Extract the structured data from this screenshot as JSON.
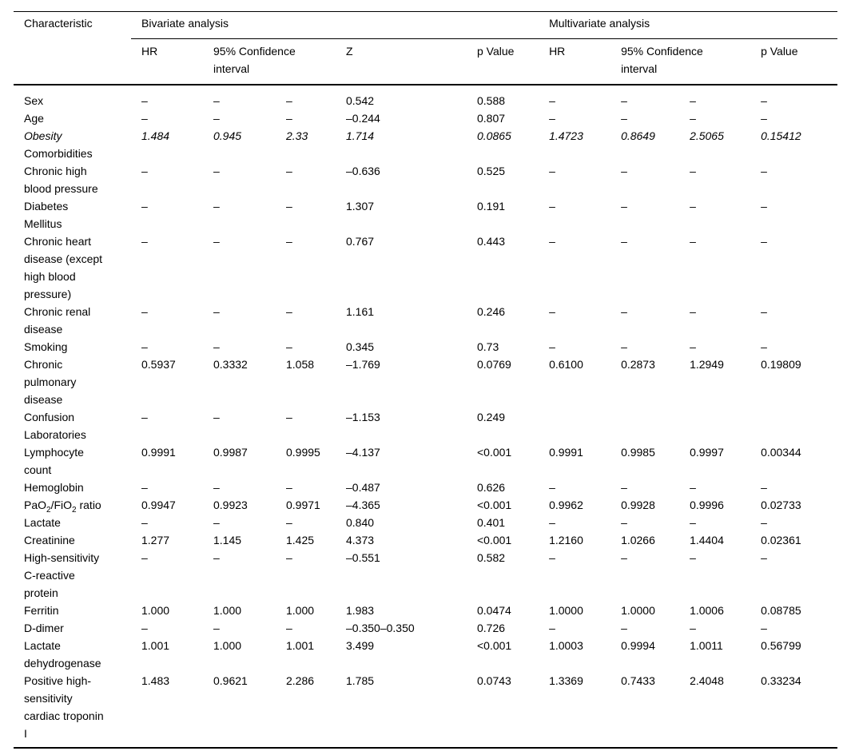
{
  "table": {
    "header": {
      "characteristic": "Characteristic",
      "bivariate": "Bivariate analysis",
      "multivariate": "Multivariate analysis",
      "sub": {
        "biv_hr": "HR",
        "biv_ci": "95% Confidence interval",
        "biv_z": "Z",
        "biv_p": "p Value",
        "multi_hr": "HR",
        "multi_ci": "95% Confidence interval",
        "multi_p": "p Value"
      }
    },
    "rows": [
      {
        "label": "Sex",
        "style": "normal",
        "italic": false,
        "cells": [
          "–",
          "–",
          "–",
          "0.542",
          "0.588",
          "–",
          "–",
          "–",
          "–"
        ]
      },
      {
        "label": "Age",
        "style": "normal",
        "italic": false,
        "cells": [
          "–",
          "–",
          "–",
          "–0.244",
          "0.807",
          "–",
          "–",
          "–",
          "–"
        ]
      },
      {
        "label": "Obesity",
        "style": "bold-italic",
        "italic": true,
        "cells": [
          "1.484",
          "0.945",
          "2.33",
          "1.714",
          "0.0865",
          "1.4723",
          "0.8649",
          "2.5065",
          "0.15412"
        ]
      },
      {
        "label": "Comorbidities",
        "style": "section",
        "italic": false,
        "cells": [
          "",
          "",
          "",
          "",
          "",
          "",
          "",
          "",
          ""
        ]
      },
      {
        "label": "Chronic high blood pressure",
        "style": "normal",
        "italic": false,
        "cells": [
          "–",
          "–",
          "–",
          "–0.636",
          "0.525",
          "–",
          "–",
          "–",
          "–"
        ]
      },
      {
        "label": "Diabetes Mellitus",
        "style": "normal",
        "italic": false,
        "cells": [
          "–",
          "–",
          "–",
          "1.307",
          "0.191",
          "–",
          "–",
          "–",
          "–"
        ]
      },
      {
        "label": "Chronic heart disease (except high blood pressure)",
        "style": "normal",
        "italic": false,
        "cells": [
          "–",
          "–",
          "–",
          "0.767",
          "0.443",
          "–",
          "–",
          "–",
          "–"
        ]
      },
      {
        "label": "Chronic renal disease",
        "style": "normal",
        "italic": false,
        "cells": [
          "–",
          "–",
          "–",
          "1.161",
          "0.246",
          "–",
          "–",
          "–",
          "–"
        ]
      },
      {
        "label": "Smoking",
        "style": "normal",
        "italic": false,
        "cells": [
          "–",
          "–",
          "–",
          "0.345",
          "0.73",
          "–",
          "–",
          "–",
          "–"
        ]
      },
      {
        "label": "Chronic pulmonary disease",
        "style": "bold",
        "italic": false,
        "cells": [
          "0.5937",
          "0.3332",
          "1.058",
          "–1.769",
          "0.0769",
          "0.6100",
          "0.2873",
          "1.2949",
          "0.19809"
        ]
      },
      {
        "label": "Confusion",
        "style": "normal",
        "italic": false,
        "cells": [
          "–",
          "–",
          "–",
          "–1.153",
          "0.249",
          "",
          "",
          "",
          ""
        ]
      },
      {
        "label": "Laboratories",
        "style": "section",
        "italic": false,
        "cells": [
          "",
          "",
          "",
          "",
          "",
          "",
          "",
          "",
          ""
        ]
      },
      {
        "label": "Lymphocyte count",
        "style": "normal",
        "italic": false,
        "cells": [
          "0.9991",
          "0.9987",
          "0.9995",
          "–4.137",
          "<0.001",
          "0.9991",
          "0.9985",
          "0.9997",
          "0.00344"
        ]
      },
      {
        "label": "Hemoglobin",
        "style": "normal",
        "italic": false,
        "cells": [
          "–",
          "–",
          "–",
          "–0.487",
          "0.626",
          "–",
          "–",
          "–",
          "–"
        ]
      },
      {
        "label": "PaO~2~/FiO~2~ ratio",
        "style": "normal",
        "italic": false,
        "cells": [
          "0.9947",
          "0.9923",
          "0.9971",
          "–4.365",
          "<0.001",
          "0.9962",
          "0.9928",
          "0.9996",
          "0.02733"
        ]
      },
      {
        "label": "Lactate",
        "style": "normal",
        "italic": false,
        "cells": [
          "–",
          "–",
          "–",
          "0.840",
          "0.401",
          "–",
          "–",
          "–",
          "–"
        ]
      },
      {
        "label": "Creatinine",
        "style": "normal",
        "italic": false,
        "cells": [
          "1.277",
          "1.145",
          "1.425",
          "4.373",
          "<0.001",
          "1.2160",
          "1.0266",
          "1.4404",
          "0.02361"
        ]
      },
      {
        "label": "High-sensitivity C-reactive protein",
        "style": "normal",
        "italic": false,
        "cells": [
          "–",
          "–",
          "–",
          "–0.551",
          "0.582",
          "–",
          "–",
          "–",
          "–"
        ]
      },
      {
        "label": "Ferritin",
        "style": "normal",
        "italic": false,
        "cells": [
          "1.000",
          "1.000",
          "1.000",
          "1.983",
          "0.0474",
          "1.0000",
          "1.0000",
          "1.0006",
          "0.08785"
        ]
      },
      {
        "label": "D-dimer",
        "style": "normal",
        "italic": false,
        "cells": [
          "–",
          "–",
          "–",
          "–0.350–0.350",
          "0.726",
          "–",
          "–",
          "–",
          "–"
        ]
      },
      {
        "label": "Lactate dehydrogenase",
        "style": "normal",
        "italic": false,
        "cells": [
          "1.001",
          "1.000",
          "1.001",
          "3.499",
          "<0.001",
          "1.0003",
          "0.9994",
          "1.0011",
          "0.56799"
        ]
      },
      {
        "label": "Positive high-sensitivity cardiac troponin I",
        "style": "normal",
        "italic": false,
        "cells": [
          "1.483",
          "0.9621",
          "2.286",
          "1.785",
          "0.0743",
          "1.3369",
          "0.7433",
          "2.4048",
          "0.33234"
        ]
      }
    ]
  }
}
